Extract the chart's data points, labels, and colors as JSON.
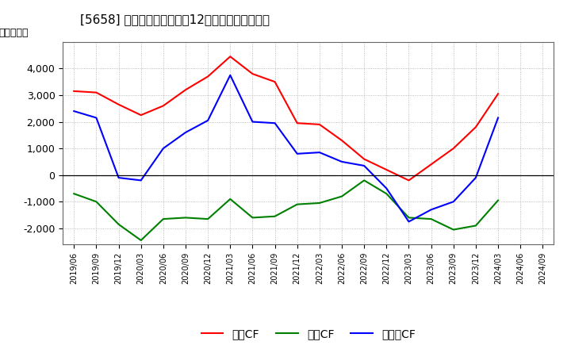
{
  "title_plain": "[5658] キャッシュフローの12か月移動合計の推移",
  "ylabel": "（百万円）",
  "background_color": "#ffffff",
  "plot_bg_color": "#ffffff",
  "grid_color": "#aaaaaa",
  "x_labels": [
    "2019/06",
    "2019/09",
    "2019/12",
    "2020/03",
    "2020/06",
    "2020/09",
    "2020/12",
    "2021/03",
    "2021/06",
    "2021/09",
    "2021/12",
    "2022/03",
    "2022/06",
    "2022/09",
    "2022/12",
    "2023/03",
    "2023/06",
    "2023/09",
    "2023/12",
    "2024/03",
    "2024/06",
    "2024/09"
  ],
  "operating_cf": [
    3150,
    3100,
    2650,
    2250,
    2600,
    3200,
    3700,
    4450,
    3800,
    3500,
    1950,
    1900,
    1300,
    600,
    200,
    -200,
    400,
    1000,
    1800,
    3050,
    null,
    null
  ],
  "investing_cf": [
    -700,
    -1000,
    -1850,
    -2450,
    -1650,
    -1600,
    -1650,
    -900,
    -1600,
    -1550,
    -1100,
    -1050,
    -800,
    -200,
    -700,
    -1600,
    -1650,
    -2050,
    -1900,
    -950,
    null,
    null
  ],
  "free_cf": [
    2400,
    2150,
    -100,
    -200,
    1000,
    1600,
    2050,
    3750,
    2000,
    1950,
    800,
    850,
    500,
    350,
    -500,
    -1750,
    -1300,
    -1000,
    -100,
    2150,
    null,
    null
  ],
  "operating_color": "#ff0000",
  "investing_color": "#008000",
  "free_color": "#0000ff",
  "legend_labels": [
    "営業CF",
    "投資CF",
    "フリーCF"
  ],
  "ylim": [
    -2600,
    5000
  ],
  "yticks": [
    -2000,
    -1000,
    0,
    1000,
    2000,
    3000,
    4000
  ],
  "title_fontsize": 11,
  "axis_fontsize": 9,
  "legend_fontsize": 10
}
